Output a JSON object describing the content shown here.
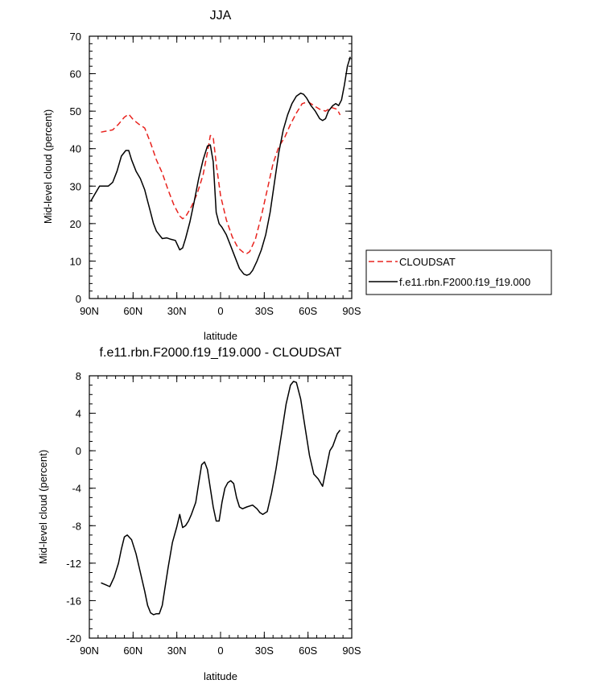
{
  "chart_data": [
    {
      "type": "line",
      "title": "JJA",
      "xlabel": "latitude",
      "ylabel": "Mid-level cloud (percent)",
      "xlim": [
        -90,
        90
      ],
      "ylim": [
        0,
        70
      ],
      "x_ticks": [
        -90,
        -60,
        -30,
        0,
        30,
        60,
        90
      ],
      "x_tick_labels": [
        "90N",
        "60N",
        "30N",
        "0",
        "30S",
        "60S",
        "90S"
      ],
      "y_ticks": [
        0,
        10,
        20,
        30,
        40,
        50,
        60,
        70
      ],
      "y_tick_labels": [
        "0",
        "10",
        "20",
        "30",
        "40",
        "50",
        "60",
        "70"
      ],
      "grid": false,
      "legend_position": "right",
      "series": [
        {
          "name": "CLOUDSAT",
          "color": "#e8231e",
          "dash": true,
          "x": [
            -82,
            -78,
            -74,
            -70,
            -66,
            -63,
            -60,
            -56,
            -52,
            -48,
            -44,
            -40,
            -36,
            -32,
            -28,
            -26,
            -24,
            -20,
            -16,
            -12,
            -9,
            -7,
            -5,
            -3,
            0,
            4,
            8,
            12,
            16,
            18,
            20,
            24,
            28,
            32,
            36,
            40,
            44,
            48,
            52,
            56,
            60,
            64,
            68,
            72,
            76,
            80,
            82
          ],
          "y": [
            44.4,
            44.7,
            45.0,
            46.5,
            48.4,
            49.2,
            47.8,
            46.5,
            45.5,
            41.5,
            37.0,
            33.5,
            29.0,
            25.0,
            22.0,
            21.3,
            21.8,
            24.5,
            28.0,
            33.0,
            39.0,
            43.5,
            43.0,
            36.0,
            27.5,
            21.0,
            16.5,
            13.5,
            12.2,
            12.0,
            12.5,
            16.0,
            22.0,
            29.0,
            36.0,
            40.5,
            43.0,
            46.5,
            49.5,
            52.0,
            52.5,
            51.5,
            50.5,
            50.0,
            51.0,
            50.5,
            49.0
          ]
        },
        {
          "name": "f.e11.rbn.F2000.f19_f19.000",
          "color": "#000000",
          "dash": false,
          "x": [
            -89,
            -86,
            -83,
            -80,
            -77,
            -74,
            -71,
            -68,
            -65,
            -63,
            -61,
            -58,
            -55,
            -52,
            -50,
            -48,
            -46,
            -44,
            -42,
            -40,
            -37,
            -34,
            -31,
            -28,
            -26,
            -24,
            -21,
            -18,
            -15,
            -12,
            -9,
            -7,
            -5,
            -3,
            -1,
            1,
            4,
            7,
            10,
            13,
            16,
            18,
            20,
            22,
            25,
            28,
            31,
            34,
            37,
            40,
            43,
            46,
            49,
            52,
            55,
            57,
            59,
            62,
            65,
            68,
            70,
            72,
            74,
            77,
            79,
            81,
            83,
            85,
            87,
            89
          ],
          "y": [
            26,
            28,
            30,
            30,
            30,
            31,
            34,
            38,
            39.5,
            39.5,
            37,
            34,
            32,
            29,
            26,
            23,
            20,
            18,
            17,
            16,
            16.2,
            15.8,
            15.5,
            13.0,
            13.5,
            16.0,
            20.5,
            26,
            32,
            37,
            40.7,
            41,
            36.5,
            23,
            20,
            19,
            17,
            14,
            11,
            8,
            6.5,
            6.2,
            6.5,
            7.5,
            10,
            13,
            17,
            23,
            31,
            39,
            45,
            49,
            52,
            54,
            54.8,
            54.5,
            53.5,
            51.5,
            50,
            48,
            47.5,
            48,
            50,
            51.5,
            52,
            51.5,
            53,
            57,
            62,
            64.5
          ]
        }
      ]
    },
    {
      "type": "line",
      "title": "f.e11.rbn.F2000.f19_f19.000 - CLOUDSAT",
      "xlabel": "latitude",
      "ylabel": "Mid-level cloud (percent)",
      "xlim": [
        -90,
        90
      ],
      "ylim": [
        -20,
        8
      ],
      "x_ticks": [
        -90,
        -60,
        -30,
        0,
        30,
        60,
        90
      ],
      "x_tick_labels": [
        "90N",
        "60N",
        "30N",
        "0",
        "30S",
        "60S",
        "90S"
      ],
      "y_ticks": [
        -20,
        -16,
        -12,
        -8,
        -4,
        0,
        4,
        8
      ],
      "y_tick_labels": [
        "-20",
        "-16",
        "-12",
        "-8",
        "-4",
        "0",
        "4",
        "8"
      ],
      "grid": false,
      "series": [
        {
          "color": "#000000",
          "dash": false,
          "x": [
            -82,
            -79,
            -76,
            -73,
            -70,
            -68,
            -66,
            -64,
            -61,
            -58,
            -55,
            -52,
            -50,
            -48,
            -46,
            -44,
            -42,
            -40,
            -38,
            -36,
            -33,
            -30,
            -28,
            -26,
            -24,
            -22,
            -20,
            -17,
            -15,
            -13,
            -11,
            -9,
            -7,
            -5,
            -3,
            -1,
            1,
            3,
            5,
            7,
            9,
            11,
            13,
            15,
            18,
            22,
            25,
            27,
            29,
            32,
            35,
            38,
            42,
            45,
            48,
            50,
            52,
            55,
            58,
            61,
            64,
            67,
            70,
            73,
            75,
            77,
            80,
            82
          ],
          "y": [
            -14.1,
            -14.3,
            -14.5,
            -13.5,
            -12,
            -10.5,
            -9.2,
            -9.0,
            -9.5,
            -11,
            -13,
            -15,
            -16.5,
            -17.3,
            -17.5,
            -17.4,
            -17.4,
            -16.5,
            -14.5,
            -12.5,
            -9.8,
            -8.1,
            -6.8,
            -8.2,
            -8.0,
            -7.5,
            -6.8,
            -5.5,
            -3.5,
            -1.5,
            -1.2,
            -2,
            -4,
            -6,
            -7.5,
            -7.5,
            -5.5,
            -4,
            -3.4,
            -3.2,
            -3.5,
            -5,
            -6,
            -6.2,
            -6,
            -5.8,
            -6.2,
            -6.6,
            -6.8,
            -6.5,
            -4.5,
            -2,
            2,
            5,
            7,
            7.4,
            7.3,
            5.5,
            2.5,
            -0.5,
            -2.5,
            -3,
            -3.8,
            -1.5,
            0,
            0.5,
            1.8,
            2.2
          ]
        }
      ]
    }
  ]
}
